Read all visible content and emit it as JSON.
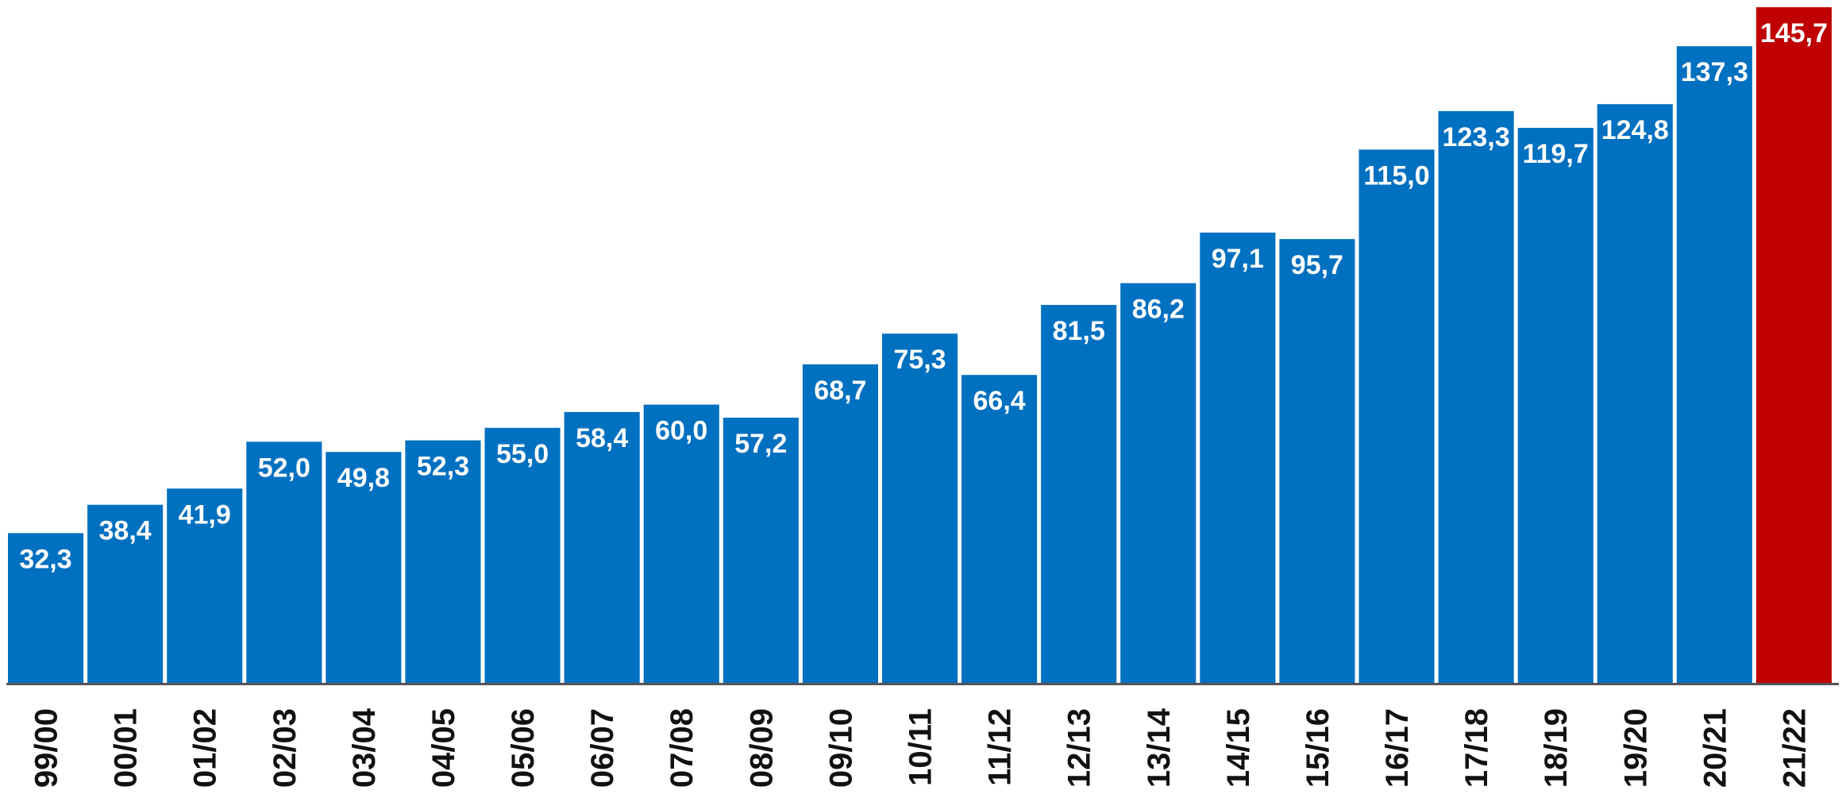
{
  "chart_data": {
    "type": "bar",
    "title": "",
    "xlabel": "",
    "ylabel": "",
    "ylim": [
      0,
      150
    ],
    "grid": false,
    "legend": "none",
    "categories": [
      "99/00",
      "00/01",
      "01/02",
      "02/03",
      "03/04",
      "04/05",
      "05/06",
      "06/07",
      "07/08",
      "08/09",
      "09/10",
      "10/11",
      "11/12",
      "12/13",
      "13/14",
      "14/15",
      "15/16",
      "16/17",
      "17/18",
      "18/19",
      "19/20",
      "20/21",
      "21/22"
    ],
    "values": [
      32.3,
      38.4,
      41.9,
      52.0,
      49.8,
      52.3,
      55.0,
      58.4,
      60.0,
      57.2,
      68.7,
      75.3,
      66.4,
      81.5,
      86.2,
      97.1,
      95.7,
      115.0,
      123.3,
      119.7,
      124.8,
      137.3,
      145.7
    ],
    "value_labels": [
      "32,3",
      "38,4",
      "41,9",
      "52,0",
      "49,8",
      "52,3",
      "55,0",
      "58,4",
      "60,0",
      "57,2",
      "68,7",
      "75,3",
      "66,4",
      "81,5",
      "86,2",
      "97,1",
      "95,7",
      "115,0",
      "123,3",
      "119,7",
      "124,8",
      "137,3",
      "145,7"
    ],
    "highlight_index": 22,
    "colors": {
      "bar": "#0070c0",
      "highlight": "#c00000",
      "axis": "#555555",
      "label": "#ffffff",
      "tick": "#111111"
    }
  }
}
